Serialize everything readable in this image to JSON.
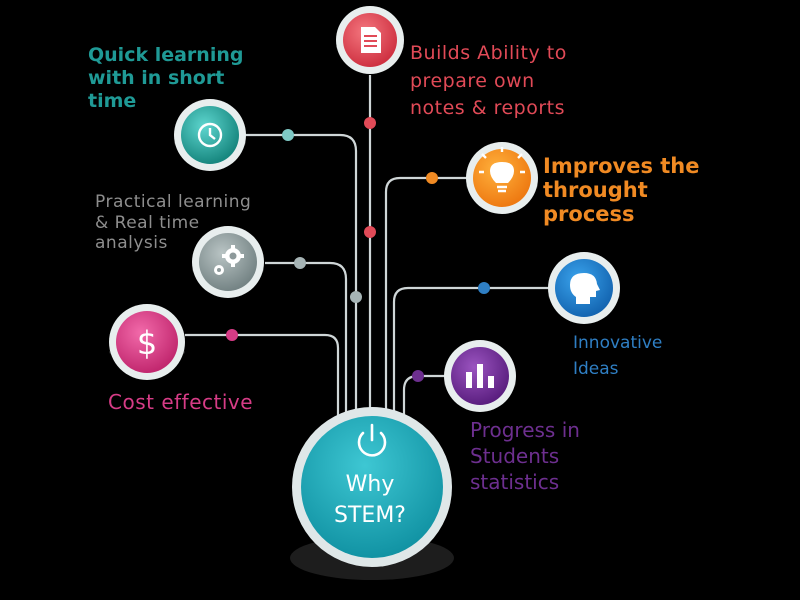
{
  "center": {
    "title_line1": "Why",
    "title_line2": "STEM?",
    "icon": "power-icon"
  },
  "nodes": [
    {
      "id": "quick-learning",
      "label": "Quick learning\nwith in short\ntime",
      "icon": "clock-icon",
      "color": "#1f9a96"
    },
    {
      "id": "practical-learning",
      "label": "Practical learning\n& Real time\nanalysis",
      "icon": "gears-icon",
      "color": "#8e8e8e"
    },
    {
      "id": "cost-effective",
      "label": "Cost effective",
      "icon": "dollar-icon",
      "color": "#d63c86"
    },
    {
      "id": "builds-ability",
      "label": "Builds Ability to\nprepare own\nnotes & reports",
      "icon": "document-icon",
      "color": "#e14a57"
    },
    {
      "id": "improves-thought",
      "label": "Improves the\nthrought\nprocess",
      "icon": "lightbulb-icon",
      "color": "#f08a23"
    },
    {
      "id": "innovative-ideas",
      "label": "Innovative\nIdeas",
      "icon": "head-icon",
      "color": "#2f7fc4"
    },
    {
      "id": "progress-statistics",
      "label": "Progress in\nStudents\nstatistics",
      "icon": "bar-chart-icon",
      "color": "#6d2f8f"
    }
  ]
}
